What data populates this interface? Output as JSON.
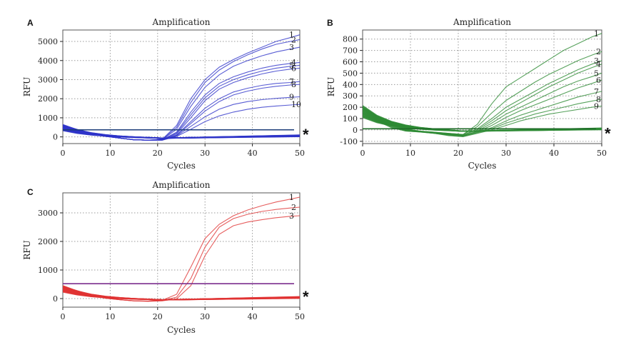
{
  "chart_data": [
    {
      "type": "line",
      "panel": "A",
      "title": "Amplification",
      "xlabel": "Cycles",
      "ylabel": "RFU",
      "xlim": [
        0,
        50
      ],
      "ylim": [
        -350,
        5600
      ],
      "xticks": [
        0,
        10,
        20,
        30,
        40,
        50
      ],
      "yticks": [
        0,
        1000,
        2000,
        3000,
        4000,
        5000
      ],
      "grid": true,
      "color": "#2f35c9",
      "threshold": 370,
      "threshold_color": "#1b3d78",
      "annotation": "*",
      "series": [
        {
          "name": "1",
          "values": [
            600,
            400,
            200,
            50,
            -60,
            -150,
            -170,
            -120,
            600,
            2000,
            3000,
            3650,
            4050,
            4400,
            4700,
            5000,
            5200,
            5350
          ]
        },
        {
          "name": "2",
          "values": [
            580,
            390,
            190,
            45,
            -60,
            -150,
            -170,
            -130,
            500,
            1800,
            2850,
            3500,
            3950,
            4300,
            4600,
            4850,
            5000,
            5100
          ]
        },
        {
          "name": "3",
          "values": [
            560,
            380,
            180,
            40,
            -60,
            -150,
            -170,
            -140,
            400,
            1600,
            2600,
            3250,
            3700,
            4000,
            4250,
            4450,
            4600,
            4700
          ]
        },
        {
          "name": "4",
          "values": [
            540,
            370,
            170,
            40,
            -60,
            -150,
            -170,
            -150,
            250,
            1300,
            2200,
            2800,
            3150,
            3400,
            3600,
            3750,
            3850,
            3900
          ]
        },
        {
          "name": "5",
          "values": [
            520,
            360,
            170,
            35,
            -60,
            -150,
            -170,
            -155,
            200,
            1150,
            2050,
            2650,
            3000,
            3250,
            3450,
            3600,
            3700,
            3750
          ]
        },
        {
          "name": "6",
          "values": [
            500,
            350,
            160,
            35,
            -60,
            -150,
            -170,
            -160,
            150,
            1000,
            1900,
            2500,
            2850,
            3100,
            3300,
            3450,
            3550,
            3600
          ]
        },
        {
          "name": "7",
          "values": [
            480,
            340,
            150,
            30,
            -60,
            -150,
            -170,
            -165,
            100,
            800,
            1500,
            2000,
            2350,
            2550,
            2700,
            2800,
            2850,
            2900
          ]
        },
        {
          "name": "8",
          "values": [
            470,
            330,
            150,
            30,
            -60,
            -150,
            -170,
            -165,
            80,
            700,
            1350,
            1850,
            2200,
            2400,
            2550,
            2650,
            2720,
            2750
          ]
        },
        {
          "name": "9",
          "values": [
            460,
            320,
            140,
            25,
            -60,
            -150,
            -170,
            -170,
            50,
            550,
            1050,
            1450,
            1700,
            1850,
            1950,
            2020,
            2070,
            2100
          ]
        },
        {
          "name": "10",
          "values": [
            450,
            310,
            140,
            25,
            -60,
            -150,
            -170,
            -170,
            20,
            400,
            800,
            1100,
            1300,
            1450,
            1550,
            1620,
            1670,
            1700
          ]
        }
      ],
      "x": [
        0,
        3,
        6,
        9,
        12,
        15,
        18,
        21,
        24,
        27,
        30,
        33,
        36,
        39,
        42,
        45,
        48,
        50
      ]
    },
    {
      "type": "line",
      "panel": "B",
      "title": "Amplification",
      "xlabel": "Cycles",
      "ylabel": "RFU",
      "xlim": [
        0,
        50
      ],
      "ylim": [
        -120,
        880
      ],
      "xticks": [
        0,
        10,
        20,
        30,
        40,
        50
      ],
      "yticks": [
        -100,
        0,
        100,
        200,
        300,
        400,
        500,
        600,
        700,
        800
      ],
      "grid": true,
      "color": "#2e8b35",
      "threshold": 10,
      "threshold_color": "#1f6b28",
      "annotation": "*",
      "series": [
        {
          "name": "1",
          "values": [
            200,
            120,
            60,
            10,
            -10,
            -20,
            -30,
            -40,
            50,
            230,
            380,
            460,
            540,
            620,
            700,
            760,
            820,
            850
          ]
        },
        {
          "name": "2",
          "values": [
            190,
            115,
            55,
            5,
            -10,
            -20,
            -30,
            -40,
            30,
            150,
            260,
            340,
            420,
            490,
            550,
            610,
            660,
            690
          ]
        },
        {
          "name": "3",
          "values": [
            180,
            110,
            50,
            5,
            -12,
            -22,
            -35,
            -45,
            10,
            100,
            200,
            270,
            340,
            410,
            470,
            530,
            580,
            610
          ]
        },
        {
          "name": "4",
          "values": [
            170,
            105,
            45,
            0,
            -12,
            -22,
            -35,
            -45,
            0,
            80,
            170,
            240,
            310,
            380,
            440,
            500,
            550,
            580
          ]
        },
        {
          "name": "5",
          "values": [
            160,
            100,
            40,
            0,
            -15,
            -25,
            -40,
            -50,
            -10,
            60,
            140,
            200,
            260,
            320,
            380,
            430,
            470,
            500
          ]
        },
        {
          "name": "6",
          "values": [
            150,
            95,
            35,
            -5,
            -15,
            -25,
            -40,
            -50,
            -15,
            40,
            110,
            170,
            220,
            270,
            320,
            370,
            410,
            440
          ]
        },
        {
          "name": "7",
          "values": [
            140,
            90,
            30,
            -5,
            -15,
            -30,
            -45,
            -55,
            -20,
            20,
            80,
            130,
            170,
            210,
            250,
            290,
            320,
            340
          ]
        },
        {
          "name": "8",
          "values": [
            130,
            85,
            25,
            -10,
            -18,
            -30,
            -45,
            -55,
            -25,
            10,
            60,
            100,
            140,
            170,
            200,
            230,
            255,
            270
          ]
        },
        {
          "name": "9",
          "values": [
            120,
            80,
            20,
            -10,
            -18,
            -30,
            -50,
            -60,
            -30,
            0,
            40,
            80,
            110,
            140,
            160,
            180,
            200,
            210
          ]
        }
      ],
      "x": [
        0,
        3,
        6,
        9,
        12,
        15,
        18,
        21,
        24,
        27,
        30,
        33,
        36,
        39,
        42,
        45,
        48,
        50
      ]
    },
    {
      "type": "line",
      "panel": "C",
      "title": "Amplification",
      "xlabel": "Cycles",
      "ylabel": "RFU",
      "xlim": [
        0,
        50
      ],
      "ylim": [
        -300,
        3700
      ],
      "xticks": [
        0,
        10,
        20,
        30,
        40,
        50
      ],
      "yticks": [
        0,
        1000,
        2000,
        3000
      ],
      "grid": true,
      "color": "#e03434",
      "threshold": 520,
      "threshold_color": "#7b2f8e",
      "annotation": "*",
      "series": [
        {
          "name": "1",
          "values": [
            420,
            280,
            130,
            20,
            -40,
            -80,
            -90,
            -60,
            150,
            1100,
            2100,
            2600,
            2900,
            3100,
            3250,
            3380,
            3480,
            3550
          ]
        },
        {
          "name": "2",
          "values": [
            400,
            270,
            120,
            15,
            -40,
            -80,
            -90,
            -70,
            50,
            700,
            1800,
            2500,
            2800,
            2950,
            3050,
            3120,
            3170,
            3200
          ]
        },
        {
          "name": "3",
          "values": [
            380,
            260,
            110,
            10,
            -40,
            -80,
            -95,
            -80,
            -10,
            450,
            1500,
            2250,
            2550,
            2680,
            2760,
            2830,
            2880,
            2900
          ]
        }
      ],
      "x": [
        0,
        3,
        6,
        9,
        12,
        15,
        18,
        21,
        24,
        27,
        30,
        33,
        36,
        39,
        42,
        45,
        48,
        50
      ]
    }
  ]
}
